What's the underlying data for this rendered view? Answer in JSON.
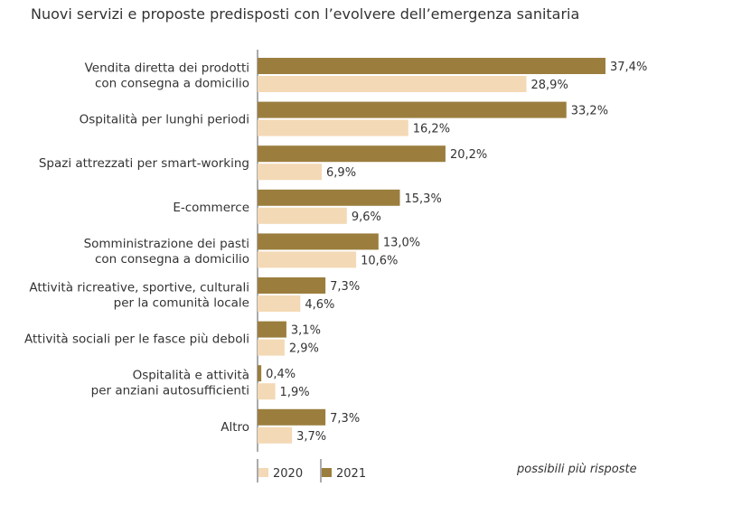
{
  "chart_data": {
    "type": "bar",
    "orientation": "horizontal",
    "title": "Nuovi servizi e proposte predisposti con l’evolvere dell’emergenza sanitaria",
    "categories": [
      [
        "Vendita diretta dei prodotti",
        "con consegna a domicilio"
      ],
      [
        "Ospitalità per lunghi periodi"
      ],
      [
        "Spazi attrezzati per smart-working"
      ],
      [
        "E-commerce"
      ],
      [
        "Somministrazione dei pasti",
        "con consegna a domicilio"
      ],
      [
        "Attività ricreative, sportive, culturali",
        "per la comunità locale"
      ],
      [
        "Attività sociali per le fasce più deboli"
      ],
      [
        "Ospitalità e attività",
        "per anziani autosufficienti"
      ],
      [
        "Altro"
      ]
    ],
    "series": [
      {
        "name": "2021",
        "color": "#9b7e3e",
        "values": [
          37.4,
          33.2,
          20.2,
          15.3,
          13.0,
          7.3,
          3.1,
          0.4,
          7.3
        ],
        "labels": [
          "37,4%",
          "33,2%",
          "20,2%",
          "15,3%",
          "13,0%",
          "7,3%",
          "3,1%",
          "0,4%",
          "7,3%"
        ]
      },
      {
        "name": "2020",
        "color": "#f3d9b5",
        "values": [
          28.9,
          16.2,
          6.9,
          9.6,
          10.6,
          4.6,
          2.9,
          1.9,
          3.7
        ],
        "labels": [
          "28,9%",
          "16,2%",
          "6,9%",
          "9,6%",
          "10,6%",
          "4,6%",
          "2,9%",
          "1,9%",
          "3,7%"
        ]
      }
    ],
    "note": "possibili più risposte",
    "legend_order": [
      "2020",
      "2021"
    ],
    "legend_position": "bottom"
  }
}
